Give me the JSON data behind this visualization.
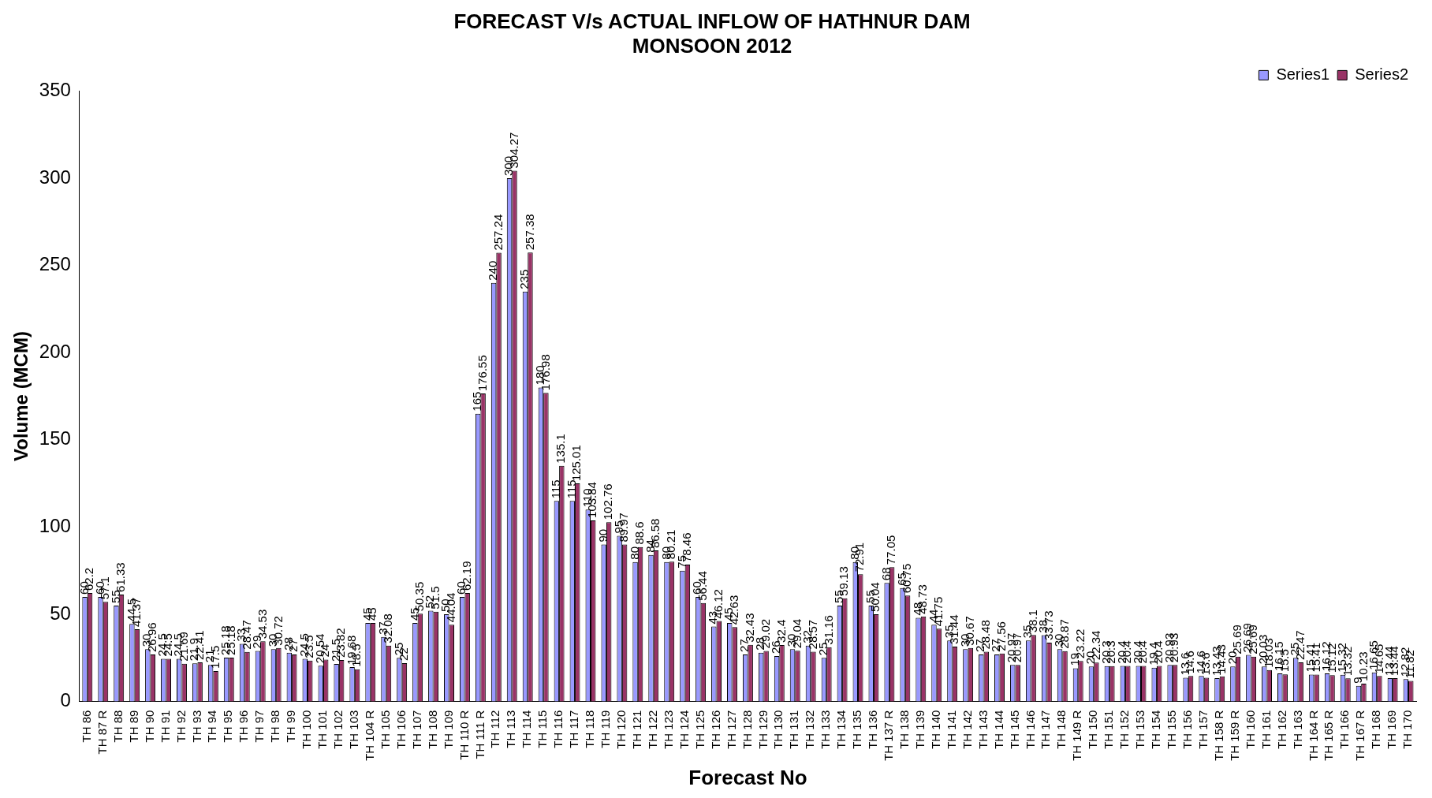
{
  "chart_data": {
    "type": "bar",
    "title": "FORECAST V/s ACTUAL INFLOW OF HATHNUR DAM",
    "subtitle": "MONSOON 2012",
    "xlabel": "Forecast No",
    "ylabel": "Volume (MCM)",
    "categories": [
      "TH 86",
      "TH 87 R",
      "TH 88",
      "TH 89",
      "TH 90",
      "TH 91",
      "TH 92",
      "TH 93",
      "TH 94",
      "TH 95",
      "TH 96",
      "TH 97",
      "TH 98",
      "TH 99",
      "TH 100",
      "TH 101",
      "TH 102",
      "TH 103",
      "TH 104 R",
      "TH 105",
      "TH 106",
      "TH 107",
      "TH 108",
      "TH 109",
      "TH 110 R",
      "TH 111 R",
      "TH 112",
      "TH 113",
      "TH 114",
      "TH 115",
      "TH 116",
      "TH 117",
      "TH 118",
      "TH 119",
      "TH 120",
      "TH 121",
      "TH 122",
      "TH 123",
      "TH 124",
      "TH 125",
      "TH 126",
      "TH 127",
      "TH 128",
      "TH 129",
      "TH 130",
      "TH 131",
      "TH 132",
      "TH 133",
      "TH 134",
      "TH 135",
      "TH 136",
      "TH 137 R",
      "TH 138",
      "TH 139",
      "TH 140",
      "TH 141",
      "TH 142",
      "TH 143",
      "TH 144",
      "TH 145",
      "TH 146",
      "TH 147",
      "TH 148",
      "TH 149 R",
      "TH 150",
      "TH 151",
      "TH 152",
      "TH 153",
      "TH 154",
      "TH 155",
      "TH 156",
      "TH 157",
      "TH 158 R",
      "TH 159 R",
      "TH 160",
      "TH 161",
      "TH 162",
      "TH 163",
      "TH 164 R",
      "TH 165 R",
      "TH 166",
      "TH 167 R",
      "TH 168",
      "TH 169",
      "TH 170"
    ],
    "series": [
      {
        "name": "Series1",
        "color": "#9999ff",
        "values": [
          60,
          60,
          55,
          44.5,
          30,
          24.5,
          24.5,
          21.9,
          21,
          25.18,
          33,
          29,
          30,
          28,
          24.5,
          20.54,
          21.5,
          19.68,
          45,
          37,
          25,
          45,
          52,
          50,
          60,
          165,
          240,
          300,
          235,
          180,
          115,
          115,
          110,
          90,
          95,
          80,
          84,
          80,
          75,
          60,
          43,
          45,
          27,
          28,
          26,
          30,
          32,
          25,
          55,
          80,
          55,
          68,
          65,
          48,
          44,
          35,
          30,
          27,
          27,
          20.97,
          35,
          38,
          30,
          19,
          20,
          20.3,
          20.4,
          20.4,
          19.4,
          20.93,
          13.6,
          14.6,
          13.43,
          20,
          26.69,
          20.03,
          16.15,
          25,
          15.41,
          16.12,
          15.32,
          9,
          16.65,
          13.44,
          12.82
        ]
      },
      {
        "name": "Series2",
        "color": "#993366",
        "values": [
          62.2,
          57.1,
          61.33,
          41.37,
          26.96,
          24.5,
          21.69,
          22.41,
          17.5,
          25.18,
          28.47,
          34.53,
          30.72,
          27,
          23.5,
          24,
          23.82,
          18.5,
          45,
          32.08,
          22,
          50.35,
          51.5,
          44.04,
          62.19,
          176.55,
          257.24,
          304.27,
          257.38,
          176.98,
          135.1,
          125.01,
          103.84,
          102.76,
          89.97,
          88.6,
          86.58,
          80.21,
          78.46,
          56.44,
          46.12,
          42.63,
          32.43,
          29.02,
          32.4,
          29.04,
          28.57,
          31.16,
          59.13,
          72.91,
          50.04,
          77.05,
          60.75,
          48.73,
          41.75,
          31.44,
          30.67,
          28.48,
          27.56,
          20.97,
          38.1,
          33.73,
          28.87,
          23.22,
          22.34,
          20.3,
          20.4,
          20.4,
          20.4,
          20.93,
          14.6,
          13.6,
          14.43,
          25.69,
          25.69,
          18.03,
          15.5,
          22.47,
          15.41,
          15.12,
          13.32,
          10.23,
          14.65,
          13.44,
          11.82
        ]
      }
    ],
    "ylim": [
      0,
      350
    ],
    "yticks": [
      0,
      50,
      100,
      150,
      200,
      250,
      300,
      350
    ],
    "legend": "top right",
    "data_labels": true
  }
}
